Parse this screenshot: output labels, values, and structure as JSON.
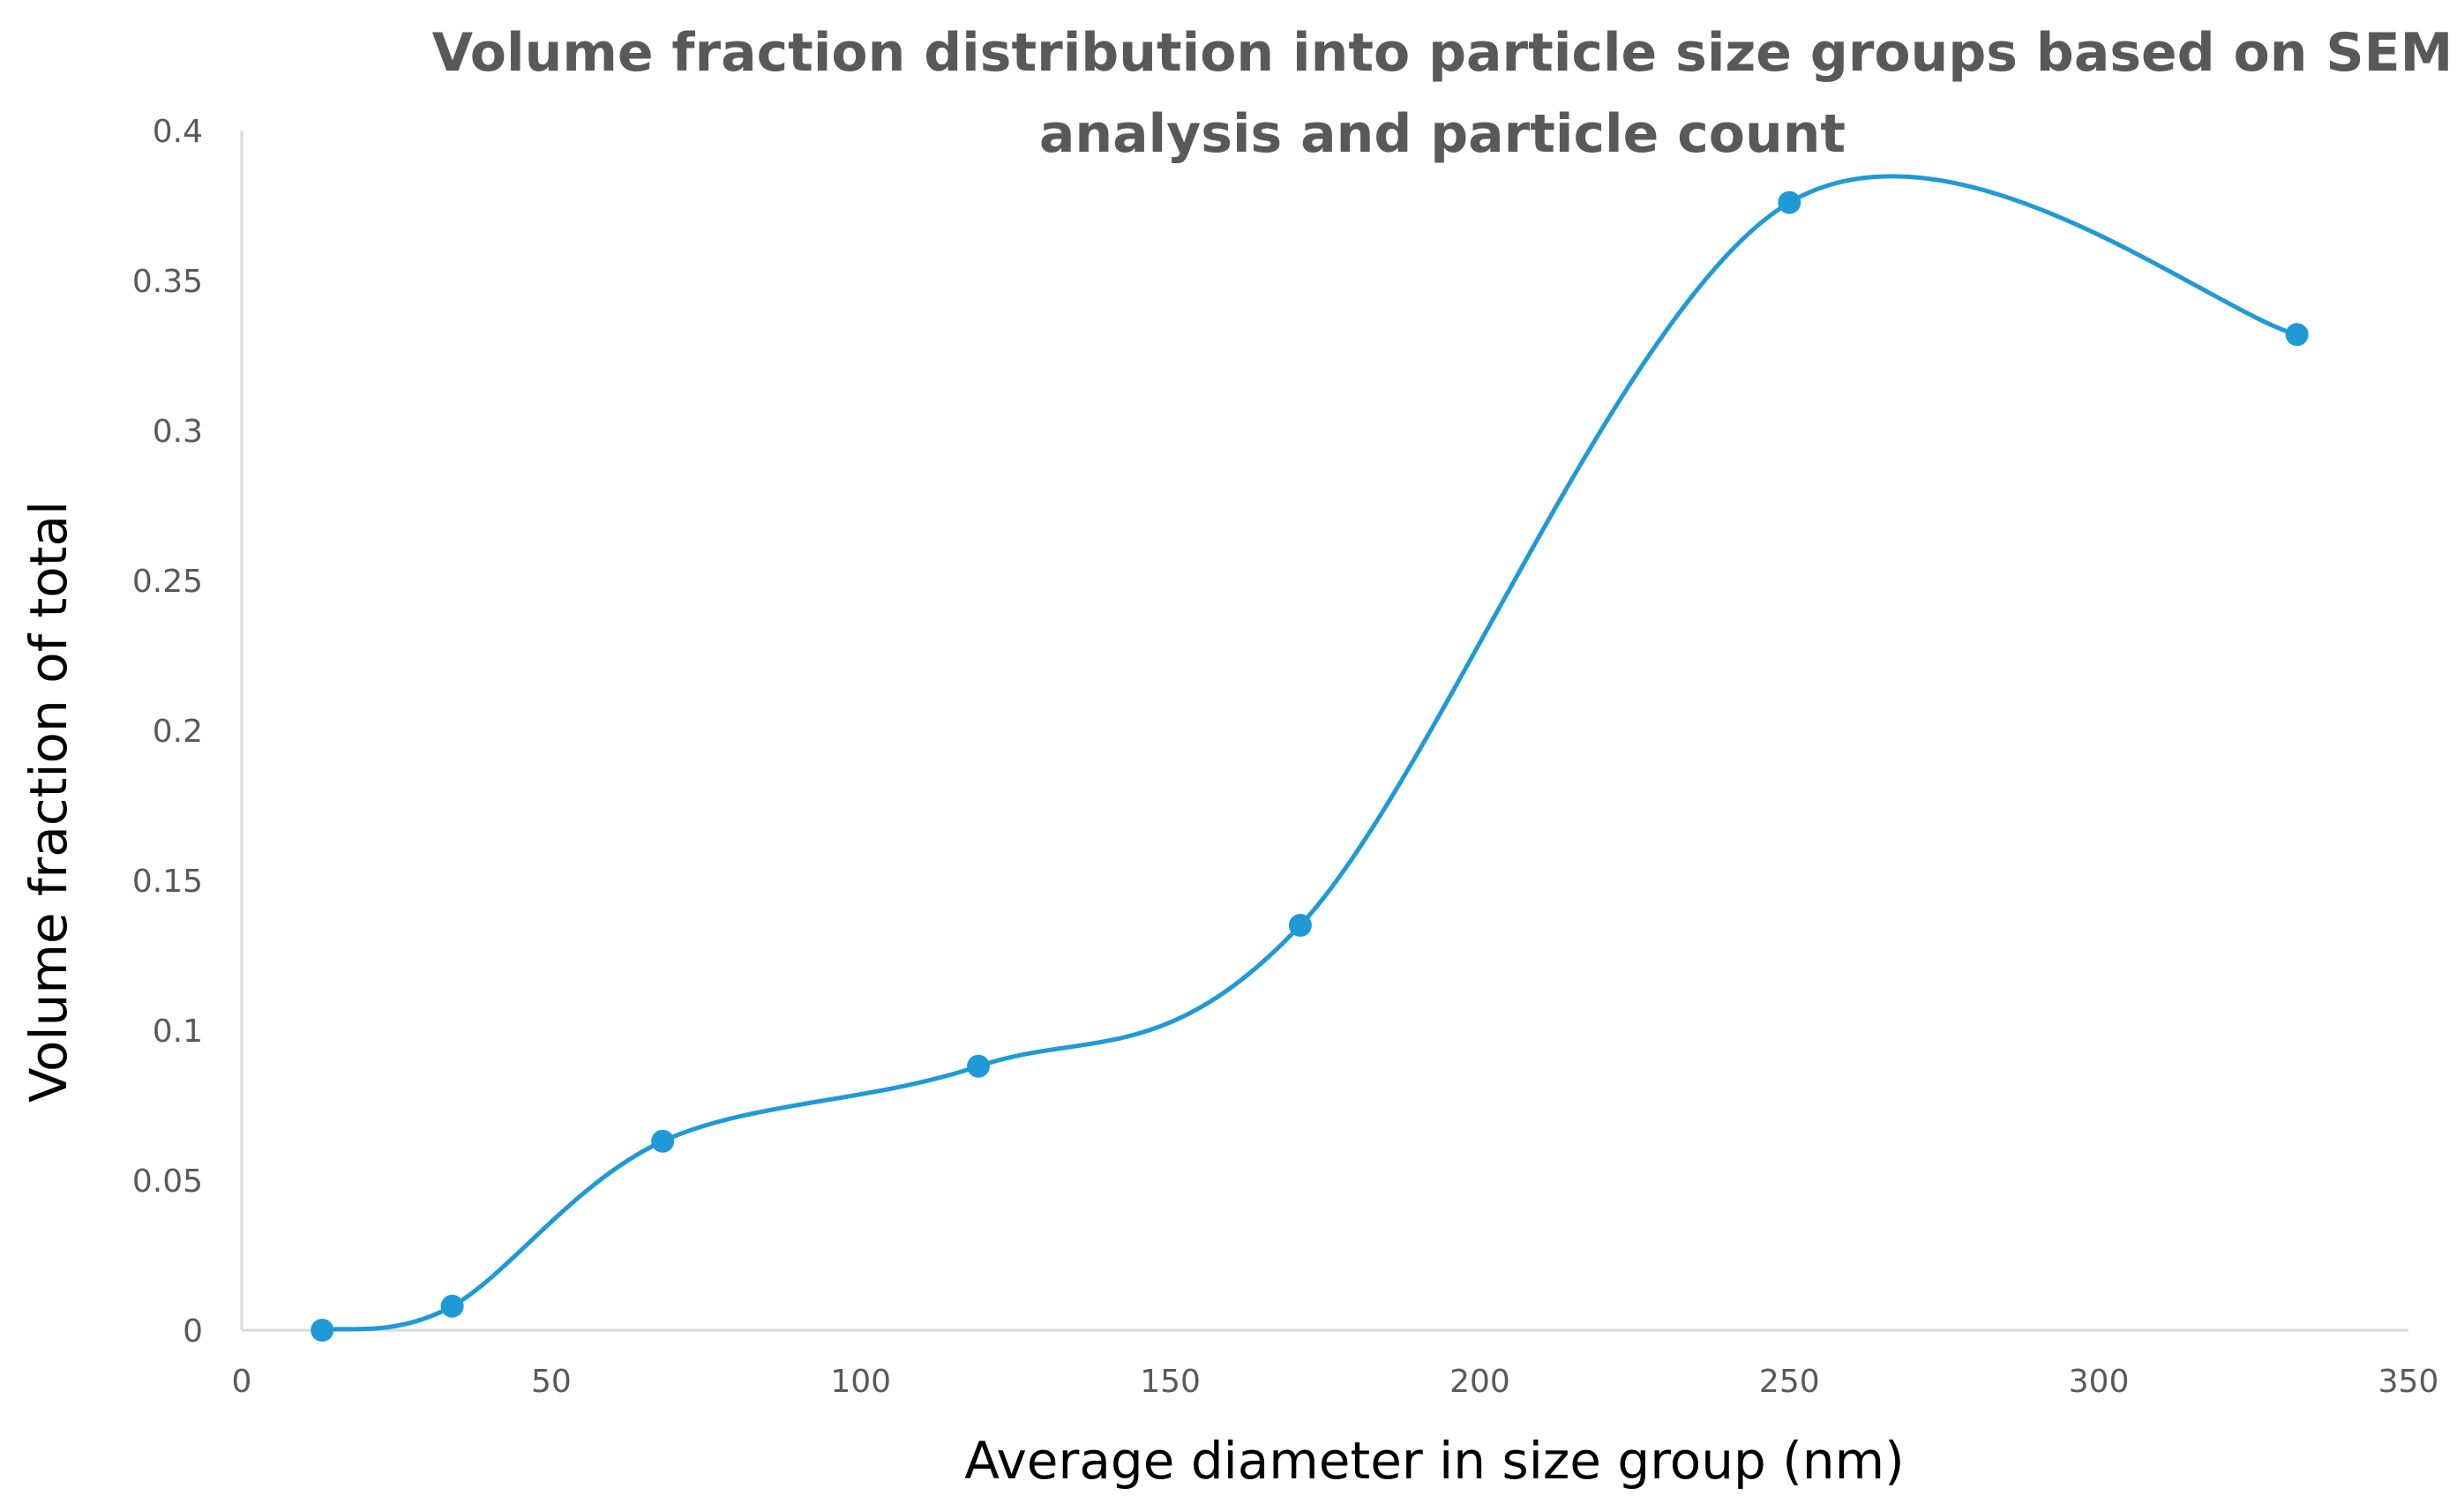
{
  "colors": {
    "series": "#1f9ad6",
    "axis": "#d9d9d9",
    "title": "#595959",
    "tick": "#595959",
    "axis_title": "#000000"
  },
  "chart_data": {
    "type": "scatter",
    "title_lines": [
      "Volume fraction distribution into particle size groups based on SEM",
      "analysis and particle count"
    ],
    "xlabel": "Average diameter in size group (nm)",
    "ylabel": "Volume fraction of total",
    "xlim": [
      0,
      350
    ],
    "ylim": [
      0,
      0.4
    ],
    "x_ticks": [
      "0",
      "50",
      "100",
      "150",
      "200",
      "250",
      "300",
      "350"
    ],
    "y_ticks": [
      "0",
      "0.05",
      "0.1",
      "0.15",
      "0.2",
      "0.25",
      "0.3",
      "0.35",
      "0.4"
    ],
    "smooth_line": true,
    "markers": true,
    "grid": false,
    "legend": "none",
    "series": [
      {
        "x": [
          13,
          34,
          68,
          119,
          171,
          250,
          332
        ],
        "y": [
          0.0,
          0.008,
          0.063,
          0.088,
          0.135,
          0.376,
          0.332
        ]
      }
    ]
  }
}
